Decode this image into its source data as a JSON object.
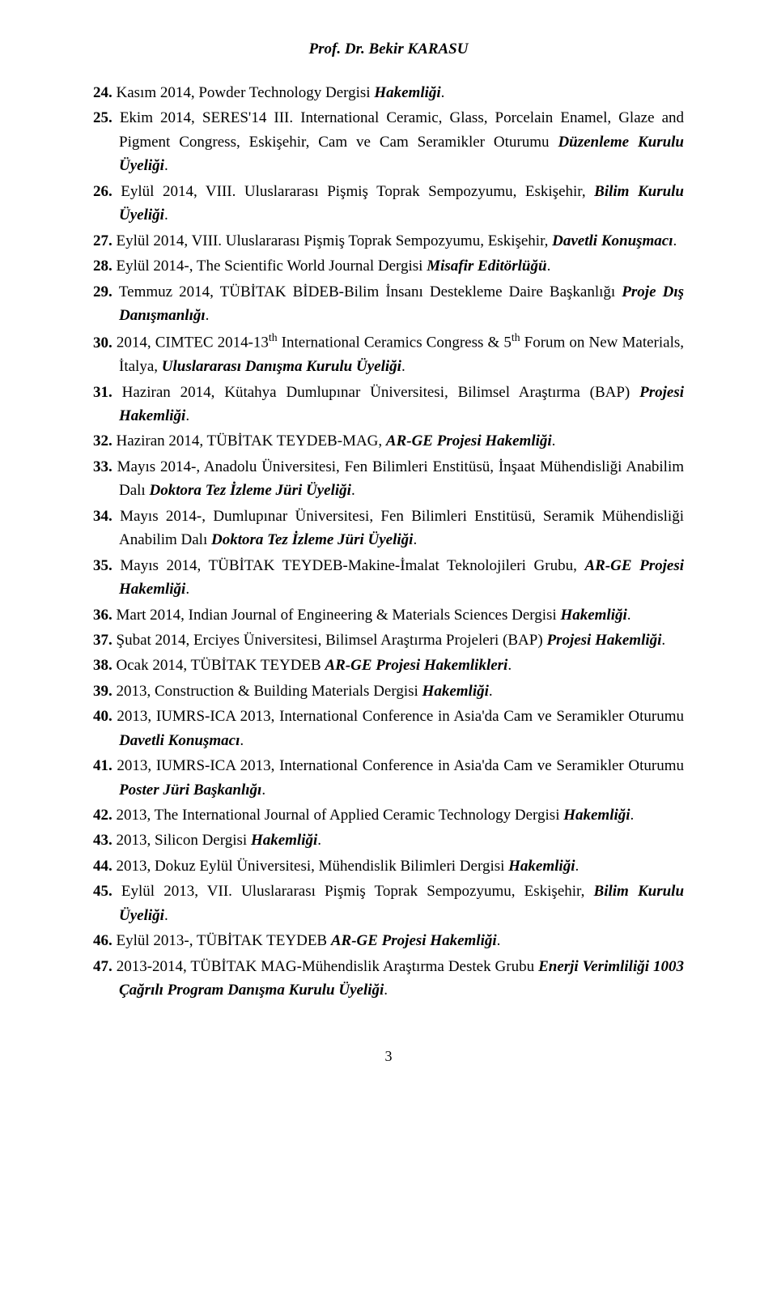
{
  "header": {
    "title": "Prof. Dr. Bekir KARASU"
  },
  "page_number": "3",
  "items": [
    {
      "plain": "Kasım 2014, Powder Technology Dergisi ",
      "emph": "Hakemliği",
      "tail": "."
    },
    {
      "plain": "Ekim 2014, SERES'14 III. International Ceramic, Glass, Porcelain Enamel, Glaze and Pigment Congress, Eskişehir, Cam ve Cam Seramikler Oturumu ",
      "emph": "Düzenleme Kurulu Üyeliği",
      "tail": "."
    },
    {
      "plain": "Eylül 2014, VIII. Uluslararası Pişmiş Toprak Sempozyumu, Eskişehir, ",
      "emph": "Bilim Kurulu Üyeliği",
      "tail": "."
    },
    {
      "plain": "Eylül 2014, VIII. Uluslararası Pişmiş Toprak Sempozyumu, Eskişehir, ",
      "emph": "Davetli Konuşmacı",
      "tail": "."
    },
    {
      "plain": "Eylül 2014-, The Scientific World Journal Dergisi ",
      "emph": "Misafir Editörlüğü",
      "tail": "."
    },
    {
      "plain": "Temmuz 2014, TÜBİTAK BİDEB-Bilim İnsanı Destekleme Daire Başkanlığı ",
      "emph": "Proje Dış Danışmanlığı",
      "tail": "."
    },
    {
      "plain": "2014, CIMTEC 2014-13",
      "sup1": "th",
      "plain2": " International Ceramics Congress & 5",
      "sup2": "th",
      "plain3": " Forum on New Materials, İtalya, ",
      "emph": "Uluslararası Danışma Kurulu Üyeliği",
      "tail": "."
    },
    {
      "plain": "Haziran 2014, Kütahya Dumlupınar Üniversitesi, Bilimsel Araştırma (BAP) ",
      "emph": "Projesi Hakemliği",
      "tail": "."
    },
    {
      "plain": "Haziran 2014, TÜBİTAK TEYDEB-MAG, ",
      "emph": "AR-GE Projesi Hakemliği",
      "tail": "."
    },
    {
      "plain": "Mayıs 2014-, Anadolu Üniversitesi, Fen Bilimleri Enstitüsü, İnşaat Mühendisliği Anabilim Dalı ",
      "emph": "Doktora Tez İzleme Jüri Üyeliği",
      "tail": "."
    },
    {
      "plain": "Mayıs 2014-, Dumlupınar Üniversitesi, Fen Bilimleri Enstitüsü, Seramik Mühendisliği Anabilim Dalı ",
      "emph": "Doktora Tez İzleme Jüri Üyeliği",
      "tail": "."
    },
    {
      "plain": "Mayıs 2014, TÜBİTAK TEYDEB-Makine-İmalat Teknolojileri Grubu, ",
      "emph": "AR-GE Projesi Hakemliği",
      "tail": "."
    },
    {
      "plain": "Mart 2014, Indian Journal of Engineering & Materials Sciences Dergisi ",
      "emph": "Hakemliği",
      "tail": "."
    },
    {
      "plain": "Şubat 2014, Erciyes Üniversitesi, Bilimsel Araştırma Projeleri (BAP) ",
      "emph": "Projesi Hakemliği",
      "tail": "."
    },
    {
      "plain": "Ocak 2014, TÜBİTAK TEYDEB ",
      "emph": "AR-GE Projesi Hakemlikleri",
      "tail": "."
    },
    {
      "plain": "2013, Construction & Building Materials Dergisi ",
      "emph": "Hakemliği",
      "tail": "."
    },
    {
      "plain": "2013, IUMRS-ICA 2013, International Conference in Asia'da Cam ve Seramikler Oturumu ",
      "emph": "Davetli Konuşmacı",
      "tail": "."
    },
    {
      "plain": "2013, IUMRS-ICA 2013, International Conference in Asia'da Cam ve Seramikler Oturumu ",
      "emph": "Poster Jüri Başkanlığı",
      "tail": "."
    },
    {
      "plain": "2013, The International Journal of Applied Ceramic Technology Dergisi ",
      "emph": "Hakemliği",
      "tail": "."
    },
    {
      "plain": "2013, Silicon Dergisi ",
      "emph": "Hakemliği",
      "tail": "."
    },
    {
      "plain": "2013, Dokuz Eylül Üniversitesi, Mühendislik Bilimleri Dergisi ",
      "emph": "Hakemliği",
      "tail": "."
    },
    {
      "plain": "Eylül 2013, VII. Uluslararası Pişmiş Toprak Sempozyumu, Eskişehir, ",
      "emph": "Bilim Kurulu Üyeliği",
      "tail": "."
    },
    {
      "plain": "Eylül 2013-, TÜBİTAK TEYDEB ",
      "emph": "AR-GE Projesi Hakemliği",
      "tail": "."
    },
    {
      "plain": "2013-2014, TÜBİTAK MAG-Mühendislik Araştırma Destek Grubu ",
      "emph": "Enerji Verimliliği 1003 Çağrılı Program Danışma Kurulu Üyeliği",
      "tail": "."
    }
  ]
}
